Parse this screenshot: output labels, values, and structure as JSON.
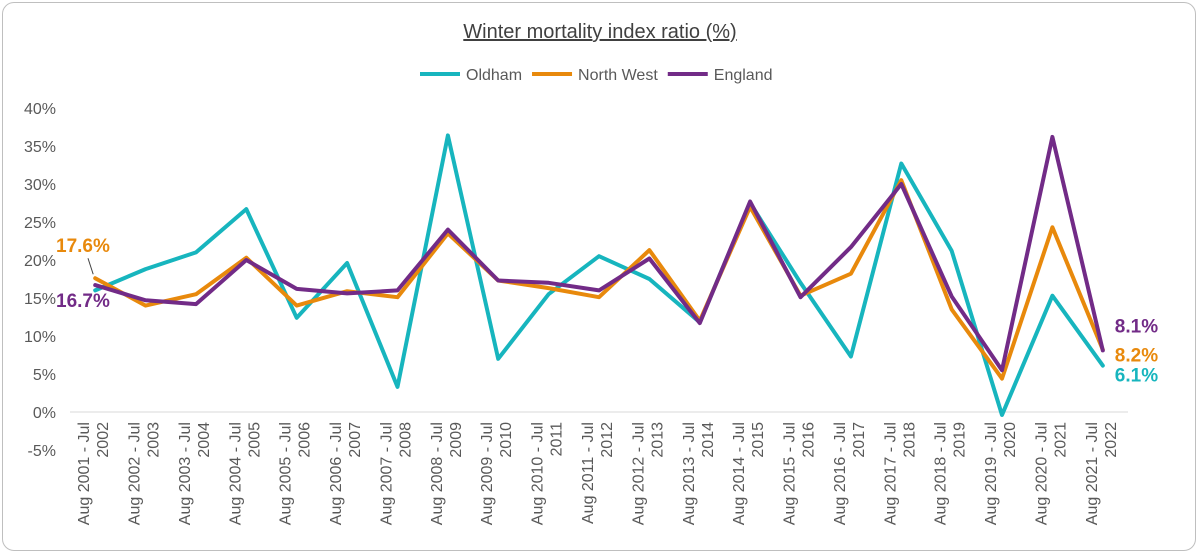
{
  "chart_data": {
    "type": "line",
    "title": "Winter mortality index ratio (%)",
    "legend_position": "top",
    "grid": false,
    "ylim": [
      -5,
      40
    ],
    "y_ticks": [
      "-5%",
      "0%",
      "5%",
      "10%",
      "15%",
      "20%",
      "25%",
      "30%",
      "35%",
      "40%"
    ],
    "categories": [
      "Aug 2001 - Jul 2002",
      "Aug 2002 - Jul 2003",
      "Aug 2003 - Jul 2004",
      "Aug 2004 - Jul 2005",
      "Aug 2005 - Jul 2006",
      "Aug 2006 - Jul 2007",
      "Aug 2007 - Jul 2008",
      "Aug 2008 - Jul 2009",
      "Aug 2009 - Jul 2010",
      "Aug 2010 - Jul 2011",
      "Aug 2011 - Jul 2012",
      "Aug 2012 - Jul 2013",
      "Aug 2013 - Jul 2014",
      "Aug 2014 - Jul 2015",
      "Aug 2015 - Jul 2016",
      "Aug 2016 - Jul 2017",
      "Aug 2017 - Jul 2018",
      "Aug 2018 - Jul 2019",
      "Aug 2019 - Jul 2020",
      "Aug 2020 - Jul 2021",
      "Aug 2021 - Jul 2022"
    ],
    "category_lines": [
      [
        "Aug 2001 - Jul",
        "2002"
      ],
      [
        "Aug 2002 - Jul",
        "2003"
      ],
      [
        "Aug 2003 - Jul",
        "2004"
      ],
      [
        "Aug 2004 - Jul",
        "2005"
      ],
      [
        "Aug 2005 - Jul",
        "2006"
      ],
      [
        "Aug 2006 - Jul",
        "2007"
      ],
      [
        "Aug 2007 - Jul",
        "2008"
      ],
      [
        "Aug 2008 - Jul",
        "2009"
      ],
      [
        "Aug 2009 - Jul",
        "2010"
      ],
      [
        "Aug 2010 - Jul",
        "2011"
      ],
      [
        "Aug 2011 - Jul",
        "2012"
      ],
      [
        "Aug 2012 - Jul",
        "2013"
      ],
      [
        "Aug 2013 - Jul",
        "2014"
      ],
      [
        "Aug 2014 - Jul",
        "2015"
      ],
      [
        "Aug 2015 - Jul",
        "2016"
      ],
      [
        "Aug 2016 - Jul",
        "2017"
      ],
      [
        "Aug 2017 - Jul",
        "2018"
      ],
      [
        "Aug 2018 - Jul",
        "2019"
      ],
      [
        "Aug 2019 - Jul",
        "2020"
      ],
      [
        "Aug 2020 - Jul",
        "2021"
      ],
      [
        "Aug 2021 - Jul",
        "2022"
      ]
    ],
    "series": [
      {
        "name": "Oldham",
        "color": "#17b5be",
        "values": [
          16.0,
          18.8,
          21.0,
          26.7,
          12.4,
          19.6,
          3.3,
          36.4,
          7.0,
          15.5,
          20.5,
          17.5,
          11.8,
          27.5,
          17.0,
          7.3,
          32.7,
          21.2,
          -0.4,
          15.3,
          6.1
        ]
      },
      {
        "name": "North West",
        "color": "#e8890c",
        "values": [
          17.6,
          14.0,
          15.5,
          20.3,
          14.0,
          15.9,
          15.1,
          23.5,
          17.3,
          16.3,
          15.1,
          21.3,
          12.0,
          27.0,
          15.3,
          18.2,
          30.5,
          13.5,
          4.4,
          24.3,
          8.2
        ]
      },
      {
        "name": "England",
        "color": "#722b87",
        "values": [
          16.7,
          14.7,
          14.2,
          20.0,
          16.2,
          15.6,
          16.0,
          24.0,
          17.3,
          17.0,
          16.0,
          20.2,
          11.7,
          27.7,
          15.1,
          21.7,
          30.0,
          15.2,
          5.5,
          36.2,
          8.1
        ]
      }
    ],
    "data_labels": [
      {
        "series": "North West",
        "index": 0,
        "text": "17.6%",
        "color": "#e8890c"
      },
      {
        "series": "England",
        "index": 0,
        "text": "16.7%",
        "color": "#722b87"
      },
      {
        "series": "England",
        "index": 20,
        "text": "8.1%",
        "color": "#722b87"
      },
      {
        "series": "North West",
        "index": 20,
        "text": "8.2%",
        "color": "#e8890c"
      },
      {
        "series": "Oldham",
        "index": 20,
        "text": "6.1%",
        "color": "#17b5be"
      }
    ]
  }
}
